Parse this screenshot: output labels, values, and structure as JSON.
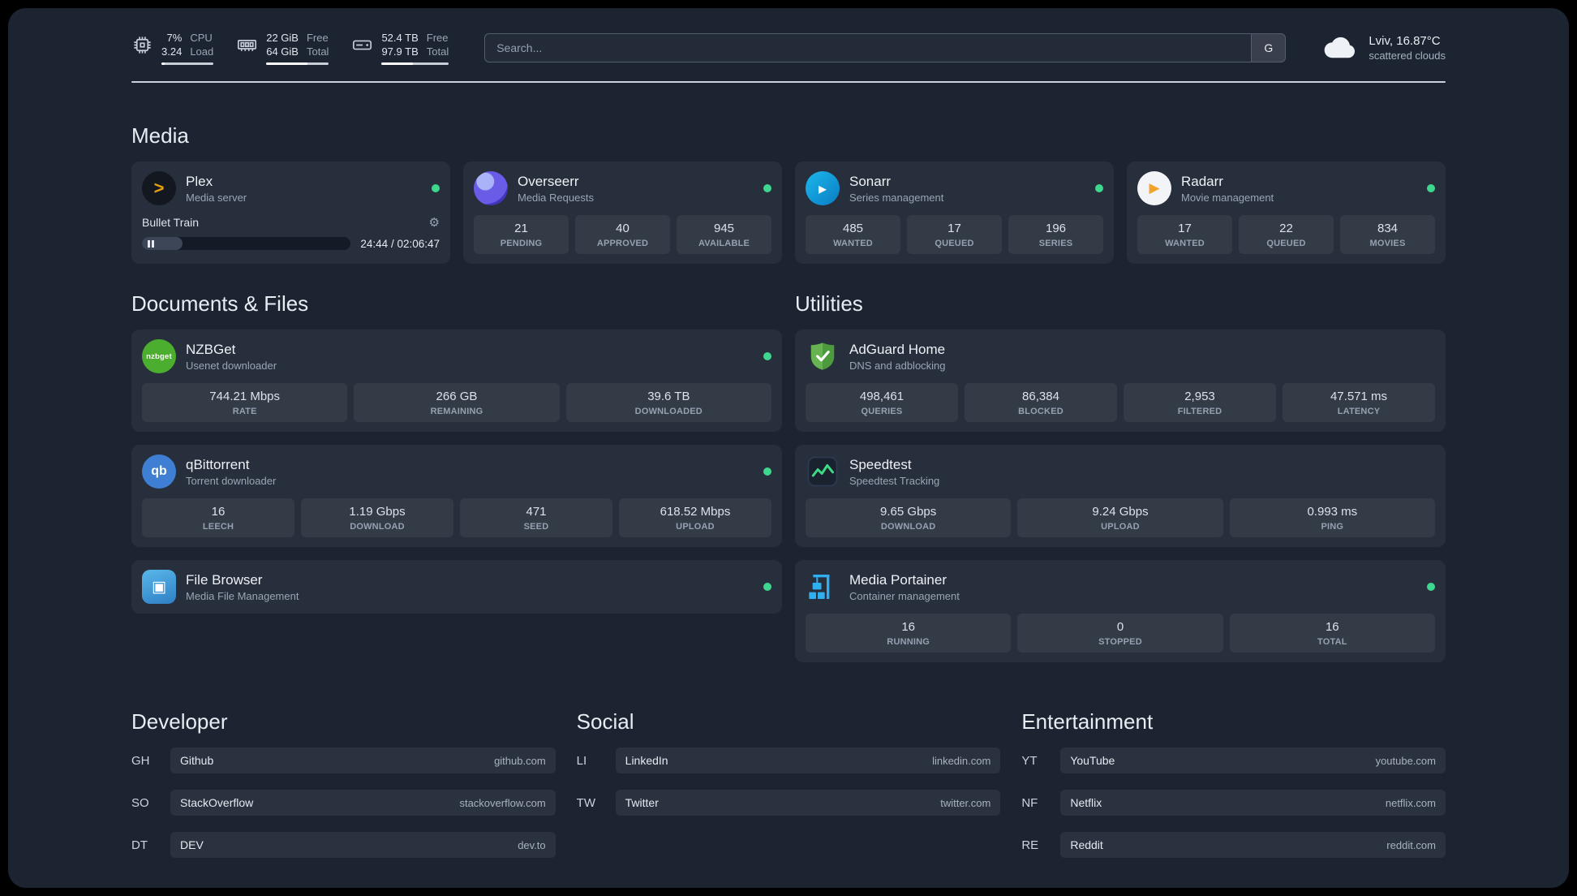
{
  "topbar": {
    "metrics": [
      {
        "values": [
          "7%",
          "3.24"
        ],
        "labels": [
          "CPU",
          "Load"
        ],
        "progress": 7
      },
      {
        "values": [
          "22 GiB",
          "64 GiB"
        ],
        "labels": [
          "Free",
          "Total"
        ],
        "progress": 66
      },
      {
        "values": [
          "52.4 TB",
          "97.9 TB"
        ],
        "labels": [
          "Free",
          "Total"
        ],
        "progress": 47
      }
    ],
    "search": {
      "placeholder": "Search...",
      "provider_button": "G"
    },
    "weather": {
      "location": "Lviv, 16.87°C",
      "condition": "scattered clouds"
    }
  },
  "glyphs": {
    "plex": ">",
    "sonarr": "▸",
    "radarr": "▶",
    "nzbget": "nzbget",
    "qbittorrent": "qb",
    "filebrowser": "▣",
    "gear": "⚙"
  },
  "status_color": "#3fd68f",
  "media": {
    "heading": "Media",
    "plex": {
      "name": "Plex",
      "subtitle": "Media server",
      "now_playing": {
        "title": "Bullet Train",
        "time": "24:44 / 02:06:47",
        "progress_pct": 19.5
      }
    },
    "overseerr": {
      "name": "Overseerr",
      "subtitle": "Media Requests",
      "stats": [
        {
          "value": "21",
          "label": "PENDING"
        },
        {
          "value": "40",
          "label": "APPROVED"
        },
        {
          "value": "945",
          "label": "AVAILABLE"
        }
      ]
    },
    "sonarr": {
      "name": "Sonarr",
      "subtitle": "Series management",
      "stats": [
        {
          "value": "485",
          "label": "WANTED"
        },
        {
          "value": "17",
          "label": "QUEUED"
        },
        {
          "value": "196",
          "label": "SERIES"
        }
      ]
    },
    "radarr": {
      "name": "Radarr",
      "subtitle": "Movie management",
      "stats": [
        {
          "value": "17",
          "label": "WANTED"
        },
        {
          "value": "22",
          "label": "QUEUED"
        },
        {
          "value": "834",
          "label": "MOVIES"
        }
      ]
    }
  },
  "documents": {
    "heading": "Documents & Files",
    "nzbget": {
      "name": "NZBGet",
      "subtitle": "Usenet downloader",
      "stats": [
        {
          "value": "744.21 Mbps",
          "label": "RATE"
        },
        {
          "value": "266 GB",
          "label": "REMAINING"
        },
        {
          "value": "39.6 TB",
          "label": "DOWNLOADED"
        }
      ]
    },
    "qbittorrent": {
      "name": "qBittorrent",
      "subtitle": "Torrent downloader",
      "stats": [
        {
          "value": "16",
          "label": "LEECH"
        },
        {
          "value": "1.19 Gbps",
          "label": "DOWNLOAD"
        },
        {
          "value": "471",
          "label": "SEED"
        },
        {
          "value": "618.52 Mbps",
          "label": "UPLOAD"
        }
      ]
    },
    "filebrowser": {
      "name": "File Browser",
      "subtitle": "Media File Management"
    }
  },
  "utilities": {
    "heading": "Utilities",
    "adguard": {
      "name": "AdGuard Home",
      "subtitle": "DNS and adblocking",
      "stats": [
        {
          "value": "498,461",
          "label": "QUERIES"
        },
        {
          "value": "86,384",
          "label": "BLOCKED"
        },
        {
          "value": "2,953",
          "label": "FILTERED"
        },
        {
          "value": "47.571 ms",
          "label": "LATENCY"
        }
      ]
    },
    "speedtest": {
      "name": "Speedtest",
      "subtitle": "Speedtest Tracking",
      "stats": [
        {
          "value": "9.65 Gbps",
          "label": "DOWNLOAD"
        },
        {
          "value": "9.24 Gbps",
          "label": "UPLOAD"
        },
        {
          "value": "0.993 ms",
          "label": "PING"
        }
      ]
    },
    "portainer": {
      "name": "Media Portainer",
      "subtitle": "Container management",
      "stats": [
        {
          "value": "16",
          "label": "RUNNING"
        },
        {
          "value": "0",
          "label": "STOPPED"
        },
        {
          "value": "16",
          "label": "TOTAL"
        }
      ]
    }
  },
  "bookmarks": [
    {
      "heading": "Developer",
      "items": [
        {
          "abbr": "GH",
          "name": "Github",
          "domain": "github.com"
        },
        {
          "abbr": "SO",
          "name": "StackOverflow",
          "domain": "stackoverflow.com"
        },
        {
          "abbr": "DT",
          "name": "DEV",
          "domain": "dev.to"
        }
      ]
    },
    {
      "heading": "Social",
      "items": [
        {
          "abbr": "LI",
          "name": "LinkedIn",
          "domain": "linkedin.com"
        },
        {
          "abbr": "TW",
          "name": "Twitter",
          "domain": "twitter.com"
        }
      ]
    },
    {
      "heading": "Entertainment",
      "items": [
        {
          "abbr": "YT",
          "name": "YouTube",
          "domain": "youtube.com"
        },
        {
          "abbr": "NF",
          "name": "Netflix",
          "domain": "netflix.com"
        },
        {
          "abbr": "RE",
          "name": "Reddit",
          "domain": "reddit.com"
        }
      ]
    }
  ]
}
